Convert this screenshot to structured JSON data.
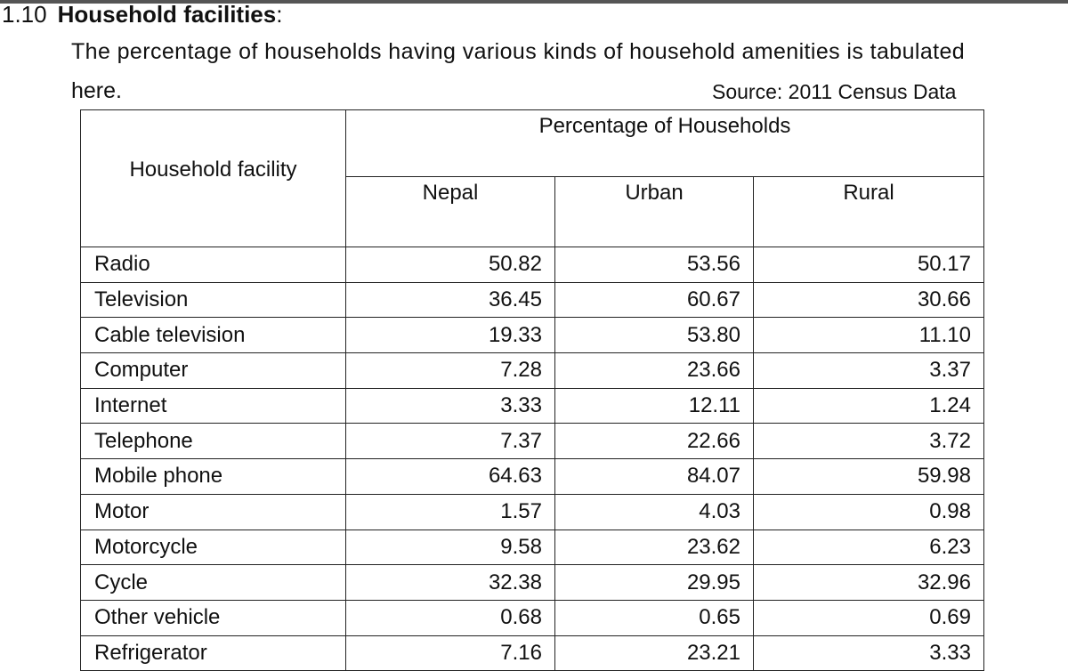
{
  "section": {
    "number": "1.10",
    "title": "Household facilities",
    "colon": ":"
  },
  "intro_line1": "The percentage of households having various kinds of household amenities is tabulated",
  "intro_line2": "here.",
  "source": "Source: 2011 Census Data",
  "table": {
    "facility_header": "Household facility",
    "group_header": "Percentage of Households",
    "columns": [
      "Nepal",
      "Urban",
      "Rural"
    ],
    "rows": [
      {
        "name": "Radio",
        "values": [
          "50.82",
          "53.56",
          "50.17"
        ]
      },
      {
        "name": "Television",
        "values": [
          "36.45",
          "60.67",
          "30.66"
        ]
      },
      {
        "name": "Cable television",
        "values": [
          "19.33",
          "53.80",
          "11.10"
        ]
      },
      {
        "name": "Computer",
        "values": [
          "7.28",
          "23.66",
          "3.37"
        ]
      },
      {
        "name": "Internet",
        "values": [
          "3.33",
          "12.11",
          "1.24"
        ]
      },
      {
        "name": "Telephone",
        "values": [
          "7.37",
          "22.66",
          "3.72"
        ]
      },
      {
        "name": "Mobile phone",
        "values": [
          "64.63",
          "84.07",
          "59.98"
        ]
      },
      {
        "name": "Motor",
        "values": [
          "1.57",
          "4.03",
          "0.98"
        ]
      },
      {
        "name": "Motorcycle",
        "values": [
          "9.58",
          "23.62",
          "6.23"
        ]
      },
      {
        "name": "Cycle",
        "values": [
          "32.38",
          "29.95",
          "32.96"
        ]
      },
      {
        "name": "Other vehicle",
        "values": [
          "0.68",
          "0.65",
          "0.69"
        ]
      },
      {
        "name": "Refrigerator",
        "values": [
          "7.16",
          "23.21",
          "3.33"
        ]
      }
    ]
  }
}
